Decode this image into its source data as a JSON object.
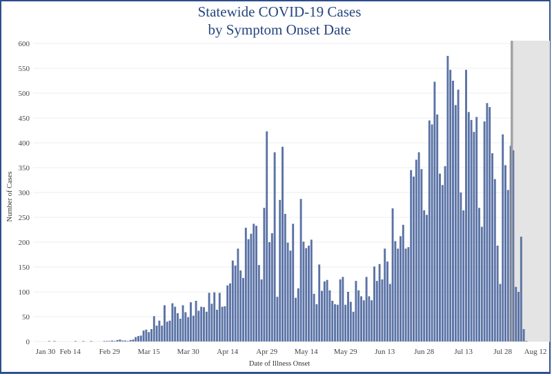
{
  "chart_data": {
    "type": "bar",
    "title": "Statewide COVID-19 Cases",
    "subtitle": "by Symptom Onset Date",
    "xlabel": "Date of Illness Onset",
    "ylabel": "Number of Cases",
    "ylim": [
      0,
      600
    ],
    "yticks": [
      "0",
      "50",
      "100",
      "150",
      "200",
      "250",
      "300",
      "350",
      "400",
      "450",
      "500",
      "550",
      "600"
    ],
    "xticks": [
      "Jan 30",
      "Feb 14",
      "Feb 29",
      "Mar 15",
      "Mar 30",
      "Apr 14",
      "Apr 29",
      "May 14",
      "May 29",
      "Jun 13",
      "Jun 28",
      "Jul 13",
      "Jul 28",
      "Aug 12"
    ],
    "grid": true,
    "bar_color": "#5a72a5",
    "shaded_region": {
      "from": "Jul 31",
      "to": "Aug 12",
      "color": "#e4e4e4",
      "edge_color": "#9a9a9a"
    },
    "categories": [
      "Jan 30",
      "Jan 31",
      "Feb 1",
      "Feb 2",
      "Feb 3",
      "Feb 4",
      "Feb 5",
      "Feb 6",
      "Feb 7",
      "Feb 8",
      "Feb 9",
      "Feb 10",
      "Feb 11",
      "Feb 12",
      "Feb 13",
      "Feb 14",
      "Feb 15",
      "Feb 16",
      "Feb 17",
      "Feb 18",
      "Feb 19",
      "Feb 20",
      "Feb 21",
      "Feb 22",
      "Feb 23",
      "Feb 24",
      "Feb 25",
      "Feb 26",
      "Feb 27",
      "Feb 28",
      "Feb 29",
      "Mar 1",
      "Mar 2",
      "Mar 3",
      "Mar 4",
      "Mar 5",
      "Mar 6",
      "Mar 7",
      "Mar 8",
      "Mar 9",
      "Mar 10",
      "Mar 11",
      "Mar 12",
      "Mar 13",
      "Mar 14",
      "Mar 15",
      "Mar 16",
      "Mar 17",
      "Mar 18",
      "Mar 19",
      "Mar 20",
      "Mar 21",
      "Mar 22",
      "Mar 23",
      "Mar 24",
      "Mar 25",
      "Mar 26",
      "Mar 27",
      "Mar 28",
      "Mar 29",
      "Mar 30",
      "Mar 31",
      "Apr 1",
      "Apr 2",
      "Apr 3",
      "Apr 4",
      "Apr 5",
      "Apr 6",
      "Apr 7",
      "Apr 8",
      "Apr 9",
      "Apr 10",
      "Apr 11",
      "Apr 12",
      "Apr 13",
      "Apr 14",
      "Apr 15",
      "Apr 16",
      "Apr 17",
      "Apr 18",
      "Apr 19",
      "Apr 20",
      "Apr 21",
      "Apr 22",
      "Apr 23",
      "Apr 24",
      "Apr 25",
      "Apr 26",
      "Apr 27",
      "Apr 28",
      "Apr 29",
      "Apr 30",
      "May 1",
      "May 2",
      "May 3",
      "May 4",
      "May 5",
      "May 6",
      "May 7",
      "May 8",
      "May 9",
      "May 10",
      "May 11",
      "May 12",
      "May 13",
      "May 14",
      "May 15",
      "May 16",
      "May 17",
      "May 18",
      "May 19",
      "May 20",
      "May 21",
      "May 22",
      "May 23",
      "May 24",
      "May 25",
      "May 26",
      "May 27",
      "May 28",
      "May 29",
      "May 30",
      "May 31",
      "Jun 1",
      "Jun 2",
      "Jun 3",
      "Jun 4",
      "Jun 5",
      "Jun 6",
      "Jun 7",
      "Jun 8",
      "Jun 9",
      "Jun 10",
      "Jun 11",
      "Jun 12",
      "Jun 13",
      "Jun 14",
      "Jun 15",
      "Jun 16",
      "Jun 17",
      "Jun 18",
      "Jun 19",
      "Jun 20",
      "Jun 21",
      "Jun 22",
      "Jun 23",
      "Jun 24",
      "Jun 25",
      "Jun 26",
      "Jun 27",
      "Jun 28",
      "Jun 29",
      "Jun 30",
      "Jul 1",
      "Jul 2",
      "Jul 3",
      "Jul 4",
      "Jul 5",
      "Jul 6",
      "Jul 7",
      "Jul 8",
      "Jul 9",
      "Jul 10",
      "Jul 11",
      "Jul 12",
      "Jul 13",
      "Jul 14",
      "Jul 15",
      "Jul 16",
      "Jul 17",
      "Jul 18",
      "Jul 19",
      "Jul 20",
      "Jul 21",
      "Jul 22",
      "Jul 23",
      "Jul 24",
      "Jul 25",
      "Jul 26",
      "Jul 27",
      "Jul 28",
      "Jul 29",
      "Jul 30",
      "Jul 31",
      "Aug 1",
      "Aug 2",
      "Aug 3",
      "Aug 4",
      "Aug 5",
      "Aug 6"
    ],
    "values": [
      0,
      0,
      0,
      0,
      0,
      0,
      0,
      1,
      0,
      1,
      0,
      0,
      0,
      0,
      0,
      0,
      0,
      1,
      0,
      0,
      1,
      0,
      0,
      1,
      0,
      0,
      0,
      0,
      1,
      1,
      1,
      2,
      1,
      3,
      4,
      2,
      2,
      1,
      3,
      4,
      9,
      11,
      12,
      22,
      24,
      19,
      25,
      51,
      32,
      42,
      32,
      73,
      40,
      42,
      77,
      70,
      57,
      46,
      73,
      59,
      49,
      79,
      52,
      82,
      62,
      70,
      69,
      60,
      98,
      76,
      99,
      64,
      98,
      70,
      71,
      113,
      117,
      163,
      153,
      187,
      143,
      128,
      229,
      206,
      217,
      237,
      233,
      154,
      125,
      269,
      423,
      200,
      218,
      381,
      90,
      285,
      392,
      257,
      199,
      183,
      237,
      88,
      107,
      287,
      201,
      188,
      193,
      205,
      96,
      75,
      155,
      102,
      121,
      124,
      103,
      82,
      75,
      74,
      125,
      130,
      74,
      100,
      80,
      60,
      122,
      103,
      91,
      83,
      130,
      91,
      83,
      151,
      122,
      156,
      125,
      187,
      161,
      116,
      268,
      202,
      187,
      212,
      235,
      187,
      190,
      345,
      332,
      366,
      381,
      347,
      264,
      255,
      445,
      437,
      523,
      457,
      338,
      315,
      353,
      575,
      547,
      525,
      476,
      507,
      300,
      264,
      547,
      462,
      446,
      422,
      452,
      269,
      231,
      443,
      480,
      472,
      379,
      327,
      193,
      116,
      417,
      355,
      305,
      394,
      385,
      110,
      100,
      211,
      25,
      1
    ]
  }
}
